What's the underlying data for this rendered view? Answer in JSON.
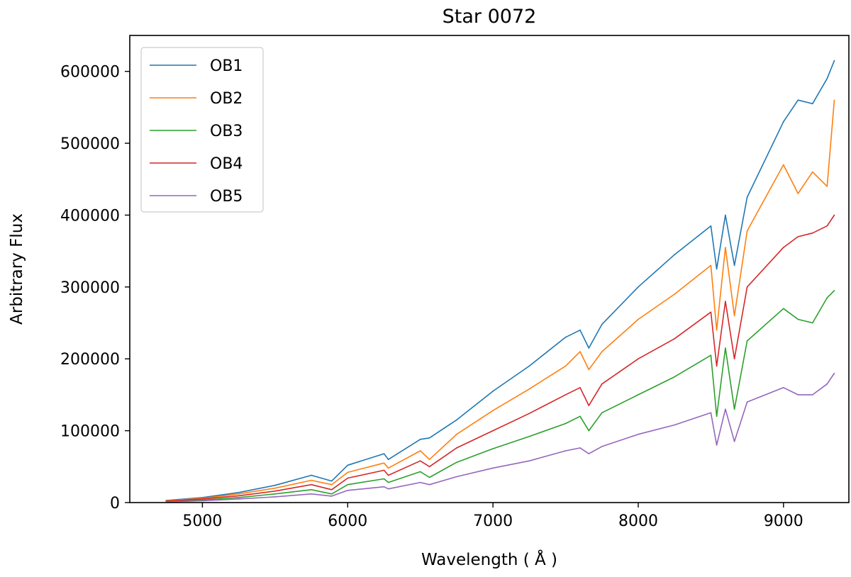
{
  "chart_data": {
    "type": "line",
    "title": "Star 0072",
    "xlabel": "Wavelength ( Å )",
    "ylabel": "Arbitrary Flux",
    "xlim": [
      4500,
      9450
    ],
    "ylim": [
      0,
      650000
    ],
    "xticks": [
      5000,
      6000,
      7000,
      8000,
      9000
    ],
    "xtick_labels": [
      "5000",
      "6000",
      "7000",
      "8000",
      "9000"
    ],
    "yticks": [
      0,
      100000,
      200000,
      300000,
      400000,
      500000,
      600000
    ],
    "ytick_labels": [
      "0",
      "100000",
      "200000",
      "300000",
      "400000",
      "500000",
      "600000"
    ],
    "grid": false,
    "legend_position": "top-left",
    "series": [
      {
        "name": "OB1",
        "color": "#1f77b4",
        "x": [
          4750,
          5000,
          5250,
          5500,
          5750,
          5890,
          6000,
          6250,
          6280,
          6500,
          6563,
          6750,
          7000,
          7250,
          7500,
          7600,
          7660,
          7750,
          8000,
          8250,
          8500,
          8540,
          8600,
          8662,
          8750,
          9000,
          9100,
          9200,
          9300,
          9350
        ],
        "y": [
          3000,
          7000,
          14000,
          24000,
          38000,
          30000,
          52000,
          68000,
          60000,
          88000,
          90000,
          115000,
          155000,
          190000,
          230000,
          240000,
          215000,
          248000,
          300000,
          345000,
          385000,
          325000,
          400000,
          330000,
          425000,
          530000,
          560000,
          555000,
          590000,
          615000
        ]
      },
      {
        "name": "OB2",
        "color": "#ff7f0e",
        "x": [
          4750,
          5000,
          5250,
          5500,
          5750,
          5890,
          6000,
          6250,
          6280,
          6500,
          6563,
          6750,
          7000,
          7250,
          7500,
          7600,
          7660,
          7750,
          8000,
          8250,
          8500,
          8540,
          8600,
          8662,
          8750,
          9000,
          9100,
          9200,
          9300,
          9350
        ],
        "y": [
          2500,
          6000,
          12000,
          20000,
          31000,
          25000,
          42000,
          55000,
          48000,
          72000,
          60000,
          95000,
          128000,
          158000,
          190000,
          210000,
          185000,
          210000,
          255000,
          290000,
          330000,
          240000,
          355000,
          260000,
          378000,
          470000,
          430000,
          460000,
          440000,
          560000
        ]
      },
      {
        "name": "OB3",
        "color": "#2ca02c",
        "x": [
          4750,
          5000,
          5250,
          5500,
          5750,
          5890,
          6000,
          6250,
          6280,
          6500,
          6563,
          6750,
          7000,
          7250,
          7500,
          7600,
          7660,
          7750,
          8000,
          8250,
          8500,
          8540,
          8600,
          8662,
          8750,
          9000,
          9100,
          9200,
          9300,
          9350
        ],
        "y": [
          1500,
          3500,
          7000,
          12000,
          18000,
          12000,
          25000,
          33000,
          28000,
          43000,
          35000,
          56000,
          75000,
          92000,
          110000,
          120000,
          100000,
          125000,
          150000,
          175000,
          205000,
          120000,
          215000,
          130000,
          225000,
          270000,
          255000,
          250000,
          285000,
          295000
        ]
      },
      {
        "name": "OB4",
        "color": "#d62728",
        "x": [
          4750,
          5000,
          5250,
          5500,
          5750,
          5890,
          6000,
          6250,
          6280,
          6500,
          6563,
          6750,
          7000,
          7250,
          7500,
          7600,
          7660,
          7750,
          8000,
          8250,
          8500,
          8540,
          8600,
          8662,
          8750,
          9000,
          9100,
          9200,
          9300,
          9350
        ],
        "y": [
          2000,
          5000,
          9500,
          16000,
          25000,
          18000,
          34000,
          45000,
          38000,
          58000,
          50000,
          76000,
          100000,
          124000,
          150000,
          160000,
          135000,
          165000,
          200000,
          228000,
          265000,
          190000,
          280000,
          200000,
          300000,
          355000,
          370000,
          375000,
          385000,
          400000
        ]
      },
      {
        "name": "OB5",
        "color": "#9467bd",
        "x": [
          4750,
          5000,
          5250,
          5500,
          5750,
          5890,
          6000,
          6250,
          6280,
          6500,
          6563,
          6750,
          7000,
          7250,
          7500,
          7600,
          7660,
          7750,
          8000,
          8250,
          8500,
          8540,
          8600,
          8662,
          8750,
          9000,
          9100,
          9200,
          9300,
          9350
        ],
        "y": [
          1000,
          2500,
          5000,
          8000,
          12000,
          9000,
          17000,
          22000,
          19000,
          28000,
          25000,
          36000,
          48000,
          58000,
          72000,
          76000,
          68000,
          78000,
          95000,
          108000,
          125000,
          80000,
          130000,
          85000,
          140000,
          160000,
          150000,
          150000,
          165000,
          180000
        ]
      }
    ]
  }
}
